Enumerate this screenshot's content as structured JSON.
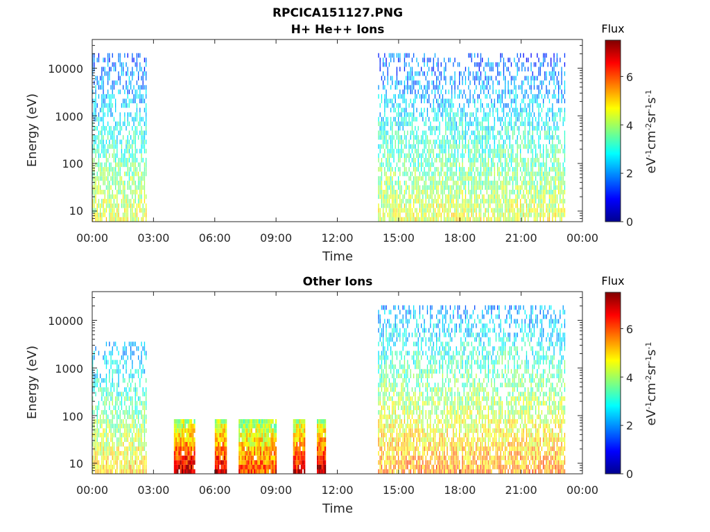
{
  "figure": {
    "filename": "RPCICA151127.PNG"
  },
  "panels": [
    {
      "title": "H+ He++ Ions",
      "ylabel": "Energy (eV)",
      "xlabel": "Time",
      "colorbar_title": "Flux",
      "colorbar_label": "eV-1cm-2sr-1s-1"
    },
    {
      "title": "Other Ions",
      "ylabel": "Energy (eV)",
      "xlabel": "Time",
      "colorbar_title": "Flux",
      "colorbar_label": "eV-1cm-2sr-1s-1"
    }
  ],
  "colors": {
    "cmap": [
      "#00008f",
      "#0000ff",
      "#00ffff",
      "#ffff00",
      "#ff0000",
      "#800000"
    ]
  },
  "chart_data": [
    {
      "type": "heatmap",
      "title": "H+ He++ Ions",
      "xlabel": "Time",
      "ylabel": "Energy (eV)",
      "yscale": "log",
      "xlim": [
        "00:00",
        "24:00"
      ],
      "ylim": [
        6,
        40000
      ],
      "x_ticks": [
        "00:00",
        "03:00",
        "06:00",
        "09:00",
        "12:00",
        "15:00",
        "18:00",
        "21:00",
        "00:00"
      ],
      "y_ticks": [
        10,
        100,
        1000,
        10000
      ],
      "colorbar": {
        "title": "Flux",
        "label": "eV-1cm-2sr-1s-1",
        "range": [
          0,
          7.5
        ],
        "ticks": [
          0,
          2,
          4,
          6
        ]
      },
      "data_intervals": [
        {
          "start": "00:00",
          "end": "02:40",
          "energy_max": 20000,
          "low_energy_peak_flux": 4.5,
          "high_energy_flux": 1.5
        },
        {
          "start": "14:00",
          "end": "23:10",
          "energy_max": 20000,
          "low_energy_peak_flux": 4.5,
          "high_energy_flux": 1.5
        }
      ]
    },
    {
      "type": "heatmap",
      "title": "Other Ions",
      "xlabel": "Time",
      "ylabel": "Energy (eV)",
      "yscale": "log",
      "xlim": [
        "00:00",
        "24:00"
      ],
      "ylim": [
        6,
        40000
      ],
      "x_ticks": [
        "00:00",
        "03:00",
        "06:00",
        "09:00",
        "12:00",
        "15:00",
        "18:00",
        "21:00",
        "00:00"
      ],
      "y_ticks": [
        10,
        100,
        1000,
        10000
      ],
      "colorbar": {
        "title": "Flux",
        "label": "eV-1cm-2sr-1s-1",
        "range": [
          0,
          7.5
        ],
        "ticks": [
          0,
          2,
          4,
          6
        ]
      },
      "data_intervals": [
        {
          "start": "00:00",
          "end": "02:40",
          "energy_max": 3000,
          "low_energy_peak_flux": 5.0,
          "high_energy_flux": 2.0
        },
        {
          "start": "04:00",
          "end": "05:00",
          "energy_max": 80,
          "low_energy_peak_flux": 7.0,
          "high_energy_flux": 4.0
        },
        {
          "start": "06:00",
          "end": "06:35",
          "energy_max": 80,
          "low_energy_peak_flux": 6.8,
          "high_energy_flux": 4.0
        },
        {
          "start": "07:10",
          "end": "09:00",
          "energy_max": 80,
          "low_energy_peak_flux": 6.0,
          "high_energy_flux": 3.8
        },
        {
          "start": "09:50",
          "end": "10:25",
          "energy_max": 80,
          "low_energy_peak_flux": 6.8,
          "high_energy_flux": 4.0
        },
        {
          "start": "11:00",
          "end": "11:25",
          "energy_max": 80,
          "low_energy_peak_flux": 7.0,
          "high_energy_flux": 4.0
        },
        {
          "start": "14:00",
          "end": "23:10",
          "energy_max": 20000,
          "low_energy_peak_flux": 5.5,
          "high_energy_flux": 2.0
        }
      ]
    }
  ]
}
